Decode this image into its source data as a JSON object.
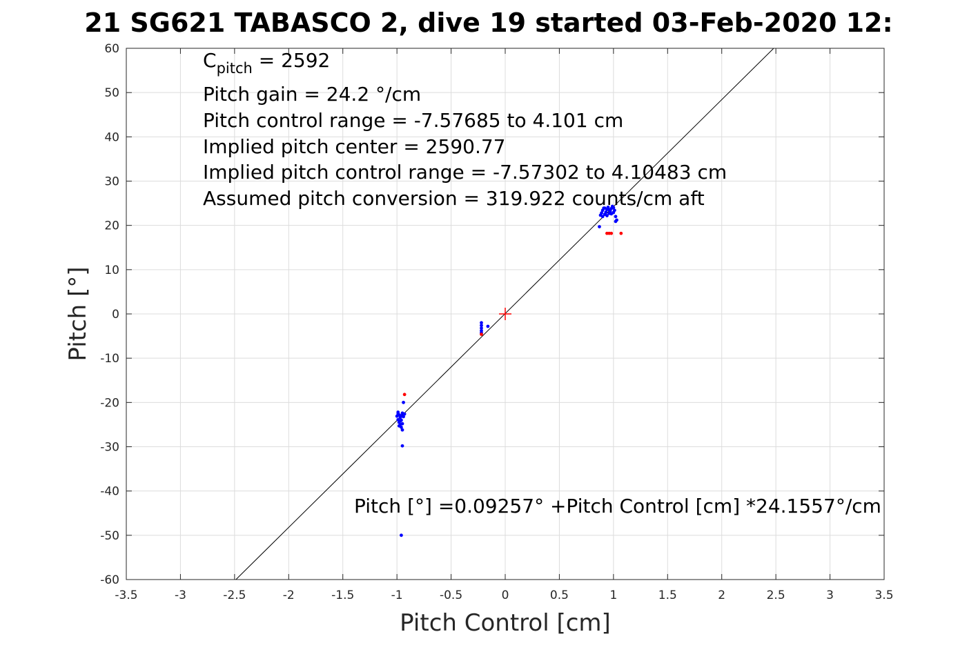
{
  "chart_data": {
    "type": "scatter",
    "title": "21 SG621 TABASCO 2, dive 19 started 03-Feb-2020 12:",
    "xlabel": "Pitch Control [cm]",
    "ylabel": "Pitch [°]",
    "xlim": [
      -3.5,
      3.5
    ],
    "ylim": [
      -60,
      60
    ],
    "x_ticks": [
      -3.5,
      -3,
      -2.5,
      -2,
      -1.5,
      -1,
      -0.5,
      0,
      0.5,
      1,
      1.5,
      2,
      2.5,
      3,
      3.5
    ],
    "x_tick_labels": [
      "-3.5",
      "-3",
      "-2.5",
      "-2",
      "-1.5",
      "-1",
      "-0.5",
      "0",
      "0.5",
      "1",
      "1.5",
      "2",
      "2.5",
      "3",
      "3.5"
    ],
    "y_ticks": [
      60,
      50,
      40,
      30,
      20,
      10,
      0,
      -10,
      -20,
      -30,
      -40,
      -50,
      -60
    ],
    "y_tick_labels": [
      "60",
      "50",
      "40",
      "30",
      "20",
      "10",
      "0",
      "-10",
      "-20",
      "-30",
      "-40",
      "-50",
      "-60"
    ],
    "grid": true,
    "box": true,
    "fit_line": {
      "intercept": 0.09257,
      "slope": 24.1557,
      "color": "#000000"
    },
    "center_marker": {
      "x": 0,
      "y": 0,
      "color": "#ff0000",
      "symbol": "+"
    },
    "series": [
      {
        "color": "#0000ff",
        "points": [
          [
            -0.99,
            -22.2
          ],
          [
            -0.98,
            -22.8
          ],
          [
            -0.97,
            -23.4
          ],
          [
            -0.99,
            -23.9
          ],
          [
            -0.98,
            -24.5
          ],
          [
            -0.97,
            -25.0
          ],
          [
            -0.96,
            -25.6
          ],
          [
            -0.95,
            -26.2
          ],
          [
            -0.96,
            -24.0
          ],
          [
            -0.94,
            -23.2
          ],
          [
            -0.93,
            -22.6
          ],
          [
            -0.95,
            -22.4
          ],
          [
            -0.96,
            -23.0
          ],
          [
            -0.97,
            -24.2
          ],
          [
            -0.98,
            -25.3
          ],
          [
            -0.99,
            -22.6
          ],
          [
            -1.0,
            -23.1
          ],
          [
            -0.95,
            -24.8
          ],
          [
            -0.94,
            -20.0
          ],
          [
            -0.95,
            -29.8
          ],
          [
            -0.96,
            -50.0
          ],
          [
            -0.22,
            -2.0
          ],
          [
            -0.22,
            -2.6
          ],
          [
            -0.22,
            -3.2
          ],
          [
            -0.22,
            -3.8
          ],
          [
            -0.22,
            -4.3
          ],
          [
            -0.16,
            -2.8
          ],
          [
            0.88,
            22.3
          ],
          [
            0.89,
            22.8
          ],
          [
            0.9,
            23.4
          ],
          [
            0.91,
            23.9
          ],
          [
            0.92,
            22.5
          ],
          [
            0.93,
            23.0
          ],
          [
            0.94,
            23.6
          ],
          [
            0.95,
            24.1
          ],
          [
            0.96,
            22.7
          ],
          [
            0.97,
            23.2
          ],
          [
            0.98,
            23.8
          ],
          [
            0.99,
            24.3
          ],
          [
            1.0,
            22.9
          ],
          [
            1.01,
            23.4
          ],
          [
            1.02,
            22.0
          ],
          [
            1.03,
            21.2
          ],
          [
            1.02,
            20.9
          ],
          [
            0.94,
            22.2
          ],
          [
            0.96,
            23.5
          ],
          [
            0.98,
            22.6
          ],
          [
            1.0,
            24.0
          ],
          [
            0.9,
            22.0
          ],
          [
            0.92,
            23.9
          ],
          [
            0.87,
            19.7
          ]
        ]
      },
      {
        "color": "#ff0000",
        "points": [
          [
            -0.93,
            -18.2
          ],
          [
            -0.22,
            -4.6
          ],
          [
            0.94,
            18.2
          ],
          [
            0.96,
            18.2
          ],
          [
            0.98,
            18.2
          ],
          [
            1.07,
            18.2
          ]
        ]
      }
    ],
    "annotations": {
      "c_pitch_main": "C",
      "c_pitch_sub": "pitch",
      "c_pitch_value": " = 2592",
      "lines": [
        "Pitch gain = 24.2 °/cm",
        "Pitch control range = -7.57685 to 4.101 cm",
        "Implied pitch center = 2590.77",
        "Implied pitch control range = -7.57302 to 4.10483 cm",
        "Assumed pitch conversion = 319.922 counts/cm aft"
      ],
      "equation": "Pitch [°] =0.09257° +Pitch Control [cm] *24.1557°/cm"
    }
  }
}
